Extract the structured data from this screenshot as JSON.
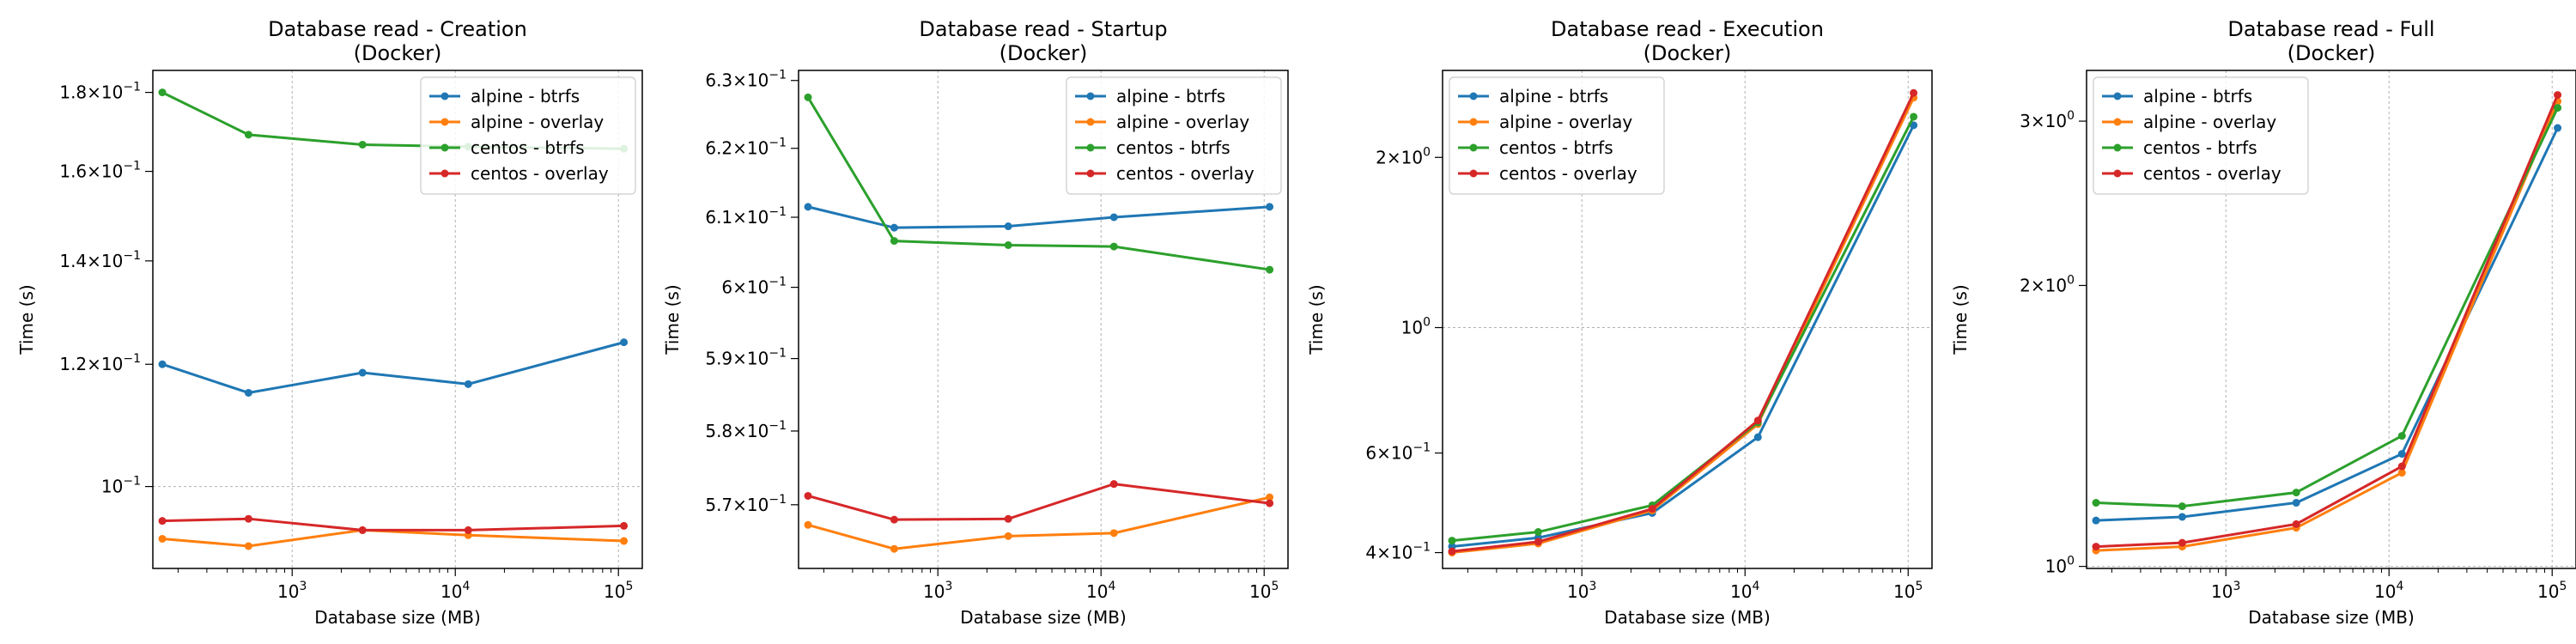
{
  "chart_data": [
    {
      "type": "line",
      "title": "Database read - Creation",
      "subtitle": "(Docker)",
      "xlabel": "Database size (MB)",
      "ylabel": "Time (s)",
      "xscale": "log",
      "yscale": "log",
      "xlim": [
        140,
        140000
      ],
      "ylim": [
        0.0885,
        0.186
      ],
      "xticks": [
        {
          "v": 1000,
          "label": "10^3"
        },
        {
          "v": 10000,
          "label": "10^4"
        },
        {
          "v": 100000,
          "label": "10^5"
        }
      ],
      "yticks": [
        {
          "v": 0.1,
          "label": "10^-1"
        },
        {
          "v": 0.12,
          "label": "1.2×10^-1"
        },
        {
          "v": 0.14,
          "label": "1.4×10^-1"
        },
        {
          "v": 0.16,
          "label": "1.6×10^-1"
        },
        {
          "v": 0.18,
          "label": "1.8×10^-1"
        }
      ],
      "grid": true,
      "legend": "upper right",
      "x": [
        160,
        540,
        2700,
        12000,
        108000
      ],
      "series": [
        {
          "name": "alpine - btrfs",
          "color": "#1f77b4",
          "values": [
            0.12,
            0.115,
            0.1185,
            0.1165,
            0.124
          ]
        },
        {
          "name": "alpine - overlay",
          "color": "#ff7f0e",
          "values": [
            0.0925,
            0.0915,
            0.0937,
            0.093,
            0.0922
          ]
        },
        {
          "name": "centos - btrfs",
          "color": "#2ca02c",
          "values": [
            0.18,
            0.169,
            0.1665,
            0.166,
            0.1655
          ]
        },
        {
          "name": "centos - overlay",
          "color": "#d62728",
          "values": [
            0.095,
            0.0953,
            0.0937,
            0.0937,
            0.0943
          ]
        }
      ]
    },
    {
      "type": "line",
      "title": "Database read - Startup",
      "subtitle": "(Docker)",
      "xlabel": "Database size (MB)",
      "ylabel": "Time (s)",
      "xscale": "log",
      "yscale": "log",
      "xlim": [
        140,
        140000
      ],
      "ylim": [
        0.5615,
        0.6315
      ],
      "xticks": [
        {
          "v": 1000,
          "label": "10^3"
        },
        {
          "v": 10000,
          "label": "10^4"
        },
        {
          "v": 100000,
          "label": "10^5"
        }
      ],
      "yticks": [
        {
          "v": 0.57,
          "label": "5.7×10^-1"
        },
        {
          "v": 0.58,
          "label": "5.8×10^-1"
        },
        {
          "v": 0.59,
          "label": "5.9×10^-1"
        },
        {
          "v": 0.6,
          "label": "6×10^-1"
        },
        {
          "v": 0.61,
          "label": "6.1×10^-1"
        },
        {
          "v": 0.62,
          "label": "6.2×10^-1"
        },
        {
          "v": 0.63,
          "label": "6.3×10^-1"
        }
      ],
      "grid": true,
      "legend": "upper right",
      "x": [
        160,
        540,
        2700,
        12000,
        108000
      ],
      "series": [
        {
          "name": "alpine - btrfs",
          "color": "#1f77b4",
          "values": [
            0.6115,
            0.6085,
            0.6087,
            0.61,
            0.6115
          ]
        },
        {
          "name": "alpine - overlay",
          "color": "#ff7f0e",
          "values": [
            0.5673,
            0.5641,
            0.5658,
            0.5662,
            0.571
          ]
        },
        {
          "name": "centos - btrfs",
          "color": "#2ca02c",
          "values": [
            0.6275,
            0.6066,
            0.606,
            0.6058,
            0.6025
          ]
        },
        {
          "name": "centos - overlay",
          "color": "#d62728",
          "values": [
            0.5712,
            0.568,
            0.5681,
            0.5728,
            0.5702
          ]
        }
      ]
    },
    {
      "type": "line",
      "title": "Database read - Execution",
      "subtitle": "(Docker)",
      "xlabel": "Database size (MB)",
      "ylabel": "Time (s)",
      "xscale": "log",
      "yscale": "log",
      "xlim": [
        140,
        140000
      ],
      "ylim": [
        0.375,
        2.85
      ],
      "xticks": [
        {
          "v": 1000,
          "label": "10^3"
        },
        {
          "v": 10000,
          "label": "10^4"
        },
        {
          "v": 100000,
          "label": "10^5"
        }
      ],
      "yticks": [
        {
          "v": 0.4,
          "label": "4×10^-1"
        },
        {
          "v": 0.6,
          "label": "6×10^-1"
        },
        {
          "v": 1.0,
          "label": "10^0"
        },
        {
          "v": 2.0,
          "label": "2×10^0"
        }
      ],
      "grid": true,
      "legend": "upper left",
      "x": [
        160,
        540,
        2700,
        12000,
        108000
      ],
      "series": [
        {
          "name": "alpine - btrfs",
          "color": "#1f77b4",
          "values": [
            0.41,
            0.425,
            0.47,
            0.64,
            2.28
          ]
        },
        {
          "name": "alpine - overlay",
          "color": "#ff7f0e",
          "values": [
            0.4,
            0.415,
            0.475,
            0.675,
            2.55
          ]
        },
        {
          "name": "centos - btrfs",
          "color": "#2ca02c",
          "values": [
            0.42,
            0.435,
            0.485,
            0.68,
            2.36
          ]
        },
        {
          "name": "centos - overlay",
          "color": "#d62728",
          "values": [
            0.402,
            0.418,
            0.478,
            0.685,
            2.6
          ]
        }
      ]
    },
    {
      "type": "line",
      "title": "Database read - Full",
      "subtitle": "(Docker)",
      "xlabel": "Database size (MB)",
      "ylabel": "Time (s)",
      "xscale": "log",
      "yscale": "log",
      "xlim": [
        140,
        140000
      ],
      "ylim": [
        0.995,
        3.4
      ],
      "xticks": [
        {
          "v": 1000,
          "label": "10^3"
        },
        {
          "v": 10000,
          "label": "10^4"
        },
        {
          "v": 100000,
          "label": "10^5"
        }
      ],
      "yticks": [
        {
          "v": 1.0,
          "label": "10^0"
        },
        {
          "v": 2.0,
          "label": "2×10^0"
        },
        {
          "v": 3.0,
          "label": "3×10^0"
        }
      ],
      "grid": true,
      "legend": "upper left",
      "x": [
        160,
        540,
        2700,
        12000,
        108000
      ],
      "series": [
        {
          "name": "alpine - btrfs",
          "color": "#1f77b4",
          "values": [
            1.12,
            1.13,
            1.17,
            1.32,
            2.95
          ]
        },
        {
          "name": "alpine - overlay",
          "color": "#ff7f0e",
          "values": [
            1.04,
            1.05,
            1.1,
            1.26,
            3.15
          ]
        },
        {
          "name": "centos - btrfs",
          "color": "#2ca02c",
          "values": [
            1.17,
            1.16,
            1.2,
            1.38,
            3.1
          ]
        },
        {
          "name": "centos - overlay",
          "color": "#d62728",
          "values": [
            1.05,
            1.06,
            1.11,
            1.28,
            3.2
          ]
        }
      ]
    }
  ]
}
